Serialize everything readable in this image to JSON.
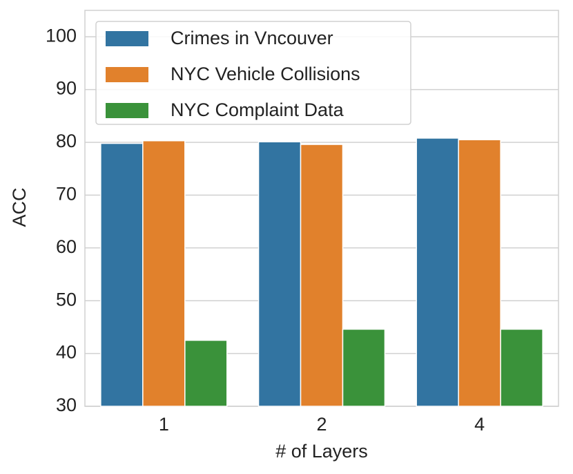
{
  "chart_data": {
    "type": "bar",
    "x_label": "# of Layers",
    "y_label": "ACC",
    "categories": [
      "1",
      "2",
      "4"
    ],
    "series": [
      {
        "name": "Crimes in Vncouver",
        "color": "#3274a1",
        "values": [
          79.8,
          80.1,
          80.8
        ]
      },
      {
        "name": "NYC Vehicle Collisions",
        "color": "#e1812c",
        "values": [
          80.3,
          79.6,
          80.5
        ]
      },
      {
        "name": "NYC Complaint Data",
        "color": "#3a923a",
        "values": [
          42.5,
          44.6,
          44.6
        ]
      }
    ],
    "ylim": [
      30,
      105
    ],
    "yticks": [
      30,
      40,
      50,
      60,
      70,
      80,
      90,
      100
    ],
    "grid": true,
    "legend": "upper-left"
  }
}
